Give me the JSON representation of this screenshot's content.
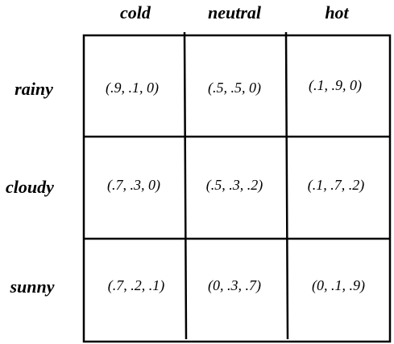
{
  "columns": [
    "cold",
    "neutral",
    "hot"
  ],
  "rows": [
    "rainy",
    "cloudy",
    "sunny"
  ],
  "cells": [
    [
      "(.9, .1, 0)",
      "(.5, .5, 0)",
      "(.1, .9, 0)"
    ],
    [
      "(.7, .3, 0)",
      "(.5, .3, .2)",
      "(.1, .7, .2)"
    ],
    [
      "(.7, .2, .1)",
      "(0, .3, .7)",
      "(0, .1, .9)"
    ]
  ]
}
